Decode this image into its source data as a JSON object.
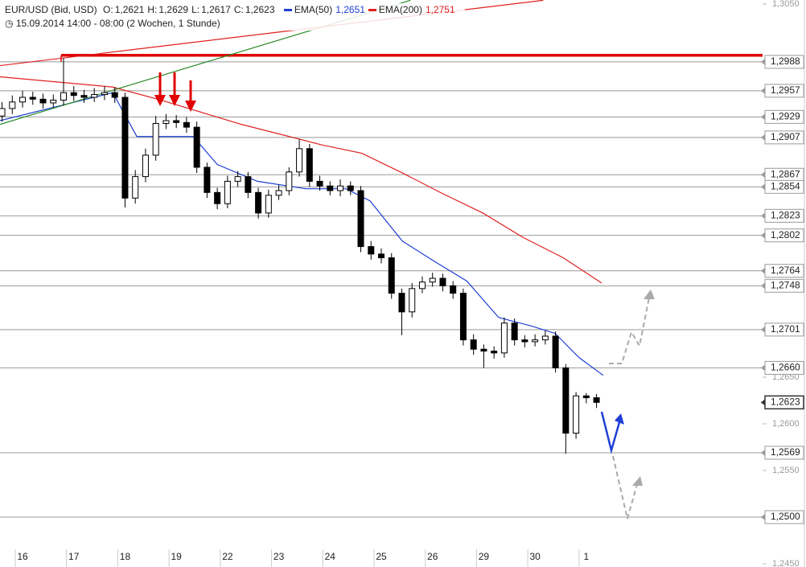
{
  "chart_data": {
    "type": "candlestick",
    "title": "EUR/USD (Bid, USD)",
    "quote": [
      {
        "name": "O:",
        "value": {
          "value": 1.2621,
          "label": "1,2621"
        }
      },
      {
        "name": "H:",
        "value": {
          "value": 1.2629,
          "label": "1,2629"
        }
      },
      {
        "name": "L:",
        "value": {
          "value": 1.2617,
          "label": "1,2617"
        }
      },
      {
        "name": "C:",
        "value": {
          "value": 1.2623,
          "label": "1,2623"
        }
      }
    ],
    "subtitle": "15.09.2014 14:00 - 08:00 (2 Wochen, 1 Stunde)",
    "categories": [
      "16",
      "17",
      "18",
      "19",
      "22",
      "23",
      "24",
      "25",
      "26",
      "29",
      "30",
      "1"
    ],
    "xlim": [
      -0.44,
      14.44
    ],
    "ylim": [
      1.245,
      1.305
    ],
    "yticks": [
      {
        "value": 1.305,
        "label": "1,3050"
      },
      {
        "value": 1.265,
        "label": "1,2650"
      },
      {
        "value": 1.26,
        "label": "1,2600"
      },
      {
        "value": 1.255,
        "label": "1,2550"
      },
      {
        "value": 1.245,
        "label": "1,2450"
      }
    ],
    "candles": {
      "up_color": "#ffffff",
      "down_color": "#000000",
      "edge_color": "#000000",
      "x": [
        -0.4,
        -0.2,
        0,
        0.2,
        0.4,
        0.6,
        0.8,
        1,
        1.2,
        1.4,
        1.6,
        1.8,
        2,
        2.2,
        2.4,
        2.6,
        2.8,
        3,
        3.2,
        3.4,
        3.6,
        3.8,
        4,
        4.2,
        4.4,
        4.6,
        4.8,
        5,
        5.2,
        5.4,
        5.6,
        5.8,
        6,
        6.2,
        6.4,
        6.6,
        6.8,
        7,
        7.2,
        7.4,
        7.6,
        7.8,
        8,
        8.2,
        8.4,
        8.6,
        8.8,
        9,
        9.2,
        9.4,
        9.6,
        9.8,
        10,
        10.2,
        10.4,
        10.6,
        10.8,
        11,
        11.2
      ],
      "open": [
        1.293,
        1.2938,
        1.2945,
        1.295,
        1.2948,
        1.2944,
        1.2947,
        1.2955,
        1.2952,
        1.295,
        1.2953,
        1.2955,
        1.295,
        1.2842,
        1.2865,
        1.2888,
        1.2922,
        1.2925,
        1.2923,
        1.2918,
        1.2875,
        1.2848,
        1.2836,
        1.286,
        1.2865,
        1.2848,
        1.2826,
        1.2845,
        1.285,
        1.287,
        1.2895,
        1.286,
        1.2855,
        1.285,
        1.2855,
        1.285,
        1.279,
        1.2782,
        1.2778,
        1.274,
        1.272,
        1.2745,
        1.2752,
        1.2756,
        1.2748,
        1.274,
        1.269,
        1.268,
        1.2678,
        1.2676,
        1.2708,
        1.269,
        1.2688,
        1.269,
        1.2694,
        1.266,
        1.259,
        1.263,
        1.2628
      ],
      "high": [
        1.2945,
        1.2952,
        1.2957,
        1.2956,
        1.2954,
        1.2953,
        1.2992,
        1.2962,
        1.2958,
        1.296,
        1.2962,
        1.2961,
        1.2955,
        1.2872,
        1.2895,
        1.293,
        1.2932,
        1.2931,
        1.2929,
        1.2924,
        1.288,
        1.2853,
        1.2866,
        1.2871,
        1.287,
        1.2853,
        1.2851,
        1.2856,
        1.2875,
        1.2905,
        1.29,
        1.2866,
        1.286,
        1.2862,
        1.286,
        1.2855,
        1.2796,
        1.2788,
        1.2783,
        1.2745,
        1.2751,
        1.2758,
        1.2762,
        1.2761,
        1.2753,
        1.2745,
        1.2696,
        1.2685,
        1.2683,
        1.2714,
        1.2713,
        1.2695,
        1.2696,
        1.27,
        1.2699,
        1.2664,
        1.2634,
        1.2633,
        1.2632
      ],
      "low": [
        1.2924,
        1.2932,
        1.2939,
        1.2942,
        1.2938,
        1.2939,
        1.2941,
        1.2946,
        1.2944,
        1.2945,
        1.2947,
        1.2944,
        1.2832,
        1.2836,
        1.2859,
        1.2882,
        1.2916,
        1.2917,
        1.2912,
        1.2869,
        1.2842,
        1.283,
        1.2831,
        1.2854,
        1.2842,
        1.282,
        1.2821,
        1.284,
        1.2845,
        1.2865,
        1.2854,
        1.285,
        1.2845,
        1.2844,
        1.2845,
        1.2784,
        1.2776,
        1.2772,
        1.2734,
        1.2695,
        1.2714,
        1.274,
        1.2747,
        1.2742,
        1.2734,
        1.2684,
        1.2674,
        1.266,
        1.267,
        1.2671,
        1.2684,
        1.2682,
        1.2683,
        1.2685,
        1.2655,
        1.2568,
        1.2584,
        1.2622,
        1.2617
      ],
      "close": [
        1.2938,
        1.2945,
        1.295,
        1.2948,
        1.2944,
        1.2947,
        1.2955,
        1.2952,
        1.295,
        1.2953,
        1.2955,
        1.295,
        1.2842,
        1.2865,
        1.2888,
        1.2922,
        1.2925,
        1.2923,
        1.2918,
        1.2875,
        1.2848,
        1.2836,
        1.286,
        1.2865,
        1.2848,
        1.2826,
        1.2845,
        1.285,
        1.287,
        1.2895,
        1.286,
        1.2855,
        1.285,
        1.2855,
        1.285,
        1.279,
        1.2782,
        1.2778,
        1.274,
        1.272,
        1.2745,
        1.2752,
        1.2756,
        1.2748,
        1.274,
        1.269,
        1.268,
        1.2678,
        1.2676,
        1.2708,
        1.269,
        1.2688,
        1.269,
        1.2694,
        1.266,
        1.259,
        1.263,
        1.2628,
        1.2623
      ]
    },
    "series": [
      {
        "name": "EMA(50)",
        "color": "#1f3fd6",
        "last": {
          "value": 1.2651,
          "label": "1,2651"
        },
        "x": [
          -0.44,
          1.76,
          2.23,
          2.7,
          3.33,
          3.8,
          4.58,
          5.53,
          6.31,
          6.78,
          7.41,
          8.04,
          8.67,
          9.29,
          9.92,
          10.39,
          10.86,
          11.33
        ],
        "values": [
          1.2925,
          1.2955,
          1.2908,
          1.2908,
          1.2908,
          1.2878,
          1.286,
          1.2852,
          1.2852,
          1.2839,
          1.2796,
          1.2774,
          1.2753,
          1.2714,
          1.2705,
          1.2697,
          1.2671,
          1.2652
        ]
      },
      {
        "name": "EMA(200)",
        "color": "#e02020",
        "last": {
          "value": 1.2751,
          "label": "1,2751"
        },
        "x": [
          -0.44,
          1.76,
          2.7,
          4.27,
          5.84,
          6.62,
          7.41,
          8.19,
          8.98,
          9.76,
          10.55,
          11.3
        ],
        "values": [
          1.2972,
          1.2961,
          1.2947,
          1.2921,
          1.2899,
          1.289,
          1.2869,
          1.2847,
          1.2826,
          1.28,
          1.2778,
          1.2751
        ]
      }
    ],
    "trendlines": [
      {
        "color": "#2a8a2a",
        "x": [
          -0.44,
          7.57
        ],
        "values": [
          1.2921,
          1.3054
        ]
      },
      {
        "color": "#e02020",
        "x": [
          -0.44,
          10.16
        ],
        "values": [
          1.2984,
          1.3054
        ]
      }
    ],
    "resistance": {
      "value": 1.2995,
      "color": "#e00000"
    },
    "levels": [
      {
        "value": 1.2988,
        "label": "1,2988"
      },
      {
        "value": 1.2957,
        "label": "1,2957"
      },
      {
        "value": 1.2929,
        "label": "1,2929"
      },
      {
        "value": 1.2907,
        "label": "1,2907"
      },
      {
        "value": 1.2867,
        "label": "1,2867"
      },
      {
        "value": 1.2854,
        "label": "1,2854"
      },
      {
        "value": 1.2823,
        "label": "1,2823"
      },
      {
        "value": 1.2802,
        "label": "1,2802"
      },
      {
        "value": 1.2764,
        "label": "1,2764"
      },
      {
        "value": 1.2748,
        "label": "1,2748"
      },
      {
        "value": 1.2701,
        "label": "1,2701"
      },
      {
        "value": 1.266,
        "label": "1,2660"
      },
      {
        "value": 1.2569,
        "label": "1,2569"
      },
      {
        "value": 1.25,
        "label": "1,2500"
      }
    ],
    "last_price": {
      "value": 1.2623,
      "label": "1,2623"
    }
  }
}
